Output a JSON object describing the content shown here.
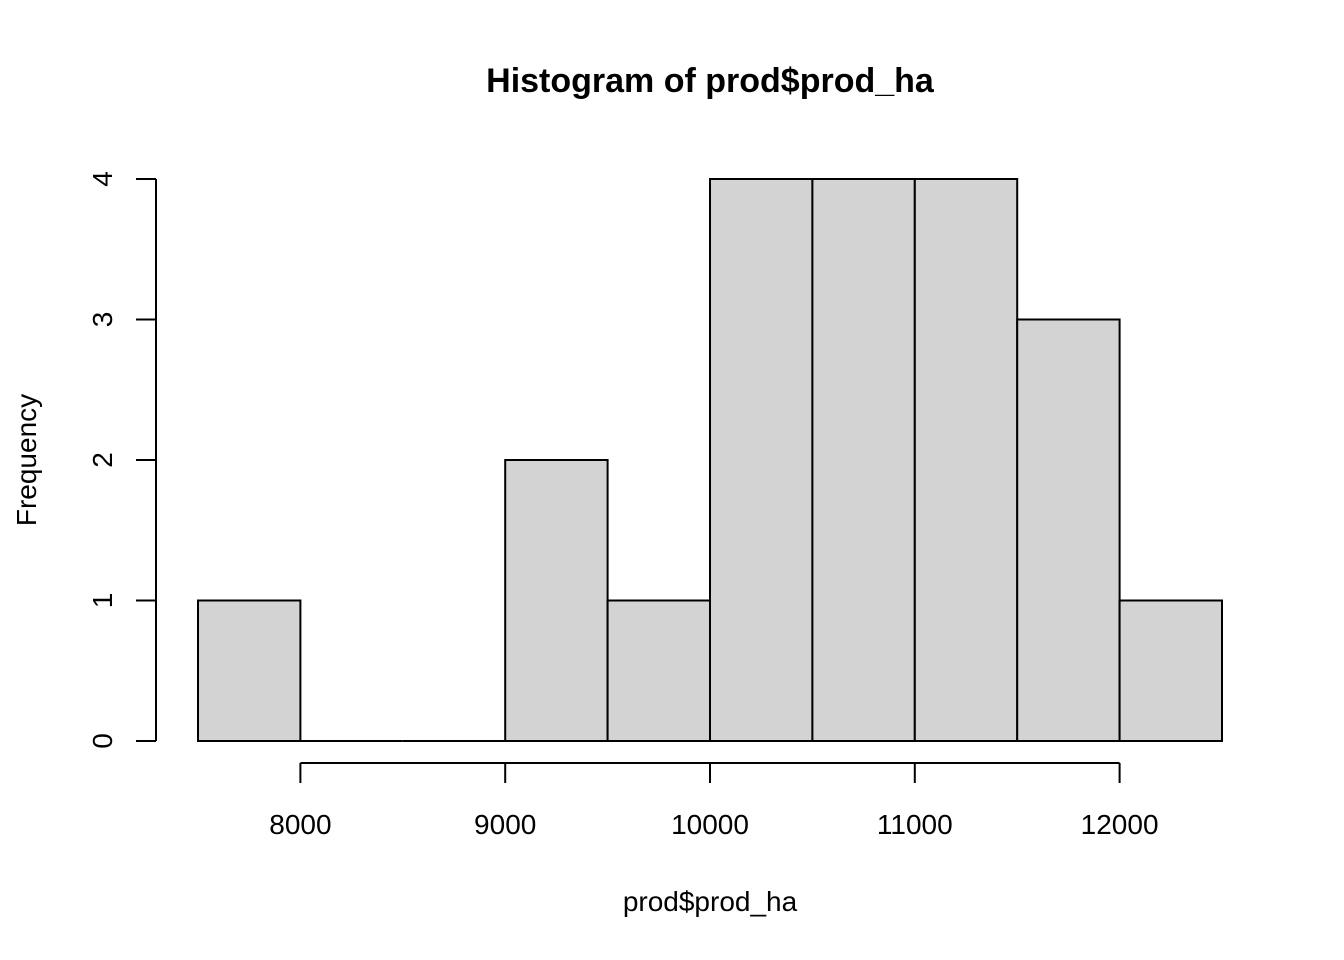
{
  "chart_data": {
    "type": "bar",
    "title": "Histogram of prod$prod_ha",
    "xlabel": "prod$prod_ha",
    "ylabel": "Frequency",
    "bins": [
      {
        "from": 7500,
        "to": 8000,
        "count": 1
      },
      {
        "from": 8000,
        "to": 8500,
        "count": 0
      },
      {
        "from": 8500,
        "to": 9000,
        "count": 0
      },
      {
        "from": 9000,
        "to": 9500,
        "count": 2
      },
      {
        "from": 9500,
        "to": 10000,
        "count": 1
      },
      {
        "from": 10000,
        "to": 10500,
        "count": 4
      },
      {
        "from": 10500,
        "to": 11000,
        "count": 4
      },
      {
        "from": 11000,
        "to": 11500,
        "count": 4
      },
      {
        "from": 11500,
        "to": 12000,
        "count": 3
      },
      {
        "from": 12000,
        "to": 12500,
        "count": 1
      }
    ],
    "xlim": [
      7500,
      12500
    ],
    "ylim": [
      0,
      4
    ],
    "x_ticks": [
      8000,
      9000,
      10000,
      11000,
      12000
    ],
    "x_tick_labels": [
      "8000",
      "9000",
      "10000",
      "11000",
      "12000"
    ],
    "y_ticks": [
      0,
      1,
      2,
      3,
      4
    ],
    "y_tick_labels": [
      "0",
      "1",
      "2",
      "3",
      "4"
    ],
    "bar_color": "#d3d3d3",
    "edge_color": "#000000",
    "grid": false
  }
}
